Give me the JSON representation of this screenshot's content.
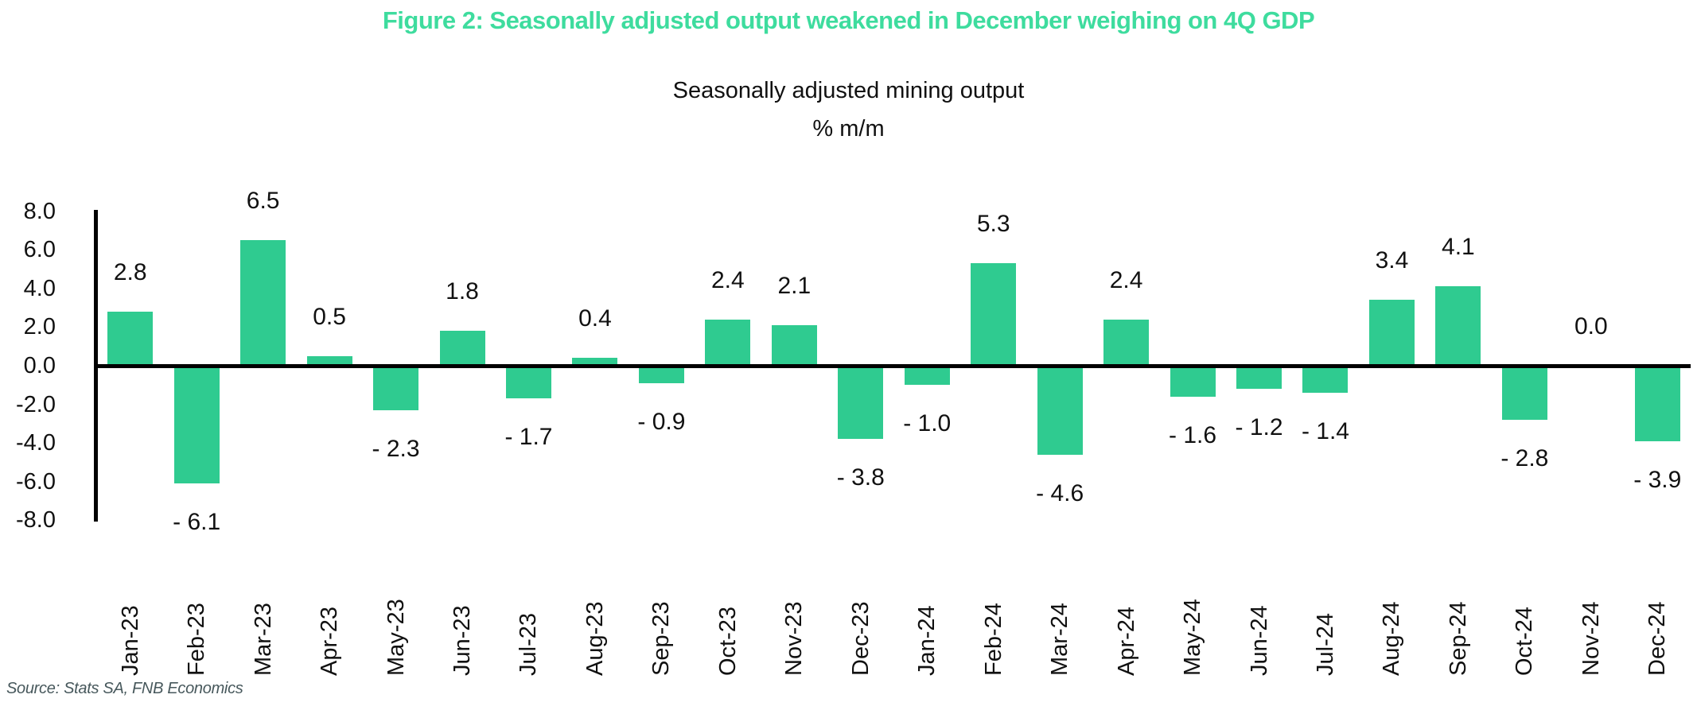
{
  "figure": {
    "title": "Figure 2: Seasonally adjusted output weakened in December weighing on 4Q GDP",
    "title_color": "#3edc9e",
    "source": "Source: Stats SA, FNB Economics"
  },
  "chart_data": {
    "type": "bar",
    "title": "Seasonally adjusted mining output",
    "units_label": "% m/m",
    "categories": [
      "Jan-23",
      "Feb-23",
      "Mar-23",
      "Apr-23",
      "May-23",
      "Jun-23",
      "Jul-23",
      "Aug-23",
      "Sep-23",
      "Oct-23",
      "Nov-23",
      "Dec-23",
      "Jan-24",
      "Feb-24",
      "Mar-24",
      "Apr-24",
      "May-24",
      "Jun-24",
      "Jul-24",
      "Aug-24",
      "Sep-24",
      "Oct-24",
      "Nov-24",
      "Dec-24"
    ],
    "values": [
      2.8,
      -6.1,
      6.5,
      0.5,
      -2.3,
      1.8,
      -1.7,
      0.4,
      -0.9,
      2.4,
      2.1,
      -3.8,
      -1.0,
      5.3,
      -4.6,
      2.4,
      -1.6,
      -1.2,
      -1.4,
      3.4,
      4.1,
      -2.8,
      0.0,
      -3.9
    ],
    "value_labels": [
      "2.8",
      "- 6.1",
      "6.5",
      "0.5",
      "- 2.3",
      "1.8",
      "- 1.7",
      "0.4",
      "- 0.9",
      "2.4",
      "2.1",
      "- 3.8",
      "- 1.0",
      "5.3",
      "- 4.6",
      "2.4",
      "- 1.6",
      "- 1.2",
      "- 1.4",
      "3.4",
      "4.1",
      "- 2.8",
      "0.0",
      "- 3.9"
    ],
    "y_ticks": [
      "8.0",
      "6.0",
      "4.0",
      "2.0",
      "0.0",
      "-2.0",
      "-4.0",
      "-6.0",
      "-8.0"
    ],
    "ylim": [
      -8,
      8
    ],
    "bar_color": "#2fcb90",
    "grid": "off",
    "legend": "none"
  }
}
